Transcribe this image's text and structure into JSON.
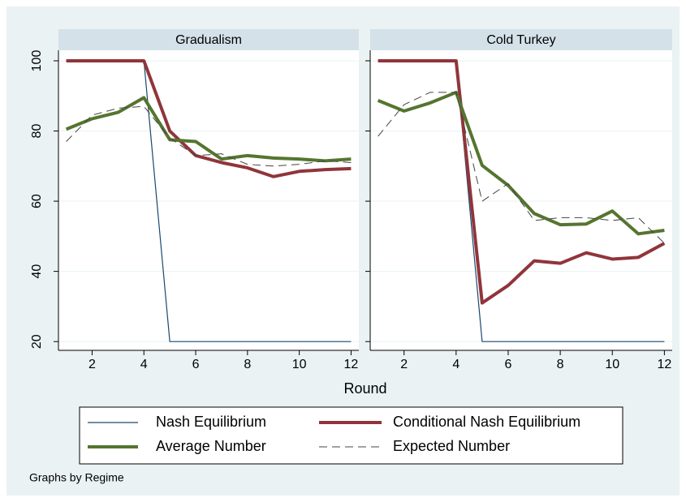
{
  "chart_data": [
    {
      "type": "line",
      "title": "Gradualism",
      "x": [
        1,
        2,
        3,
        4,
        5,
        6,
        7,
        8,
        9,
        10,
        11,
        12
      ],
      "xlim": [
        0.7,
        12.3
      ],
      "xticks": [
        2,
        4,
        6,
        8,
        10,
        12
      ],
      "ylim": [
        17.5,
        103
      ],
      "yticks": [
        20,
        40,
        60,
        80,
        100
      ],
      "grid": true,
      "series": [
        {
          "name": "Nash Equilibrium",
          "color": "#1a476f",
          "width": 1.2,
          "dashed": false,
          "values": [
            100,
            100,
            100,
            100,
            20,
            20,
            20,
            20,
            20,
            20,
            20,
            20
          ]
        },
        {
          "name": "Conditional Nash Equilibrium",
          "color": "#90353b",
          "width": 4,
          "dashed": false,
          "values": [
            100,
            100,
            100,
            100,
            80,
            73,
            71,
            69.5,
            67,
            68.5,
            69,
            69.3
          ]
        },
        {
          "name": "Average Number",
          "color": "#55752f",
          "width": 4,
          "dashed": false,
          "values": [
            80.5,
            83.5,
            85.3,
            89.5,
            77.5,
            77,
            72,
            73,
            72.3,
            72,
            71.5,
            72
          ]
        },
        {
          "name": "Expected Number",
          "color": "#444444",
          "width": 1,
          "dashed": true,
          "values": [
            77,
            84.5,
            86.5,
            87,
            78,
            73,
            73.5,
            70.5,
            70,
            70.5,
            71.5,
            71
          ]
        }
      ]
    },
    {
      "type": "line",
      "title": "Cold Turkey",
      "x": [
        1,
        2,
        3,
        4,
        5,
        6,
        7,
        8,
        9,
        10,
        11,
        12
      ],
      "xlim": [
        0.7,
        12.3
      ],
      "xticks": [
        2,
        4,
        6,
        8,
        10,
        12
      ],
      "ylim": [
        17.5,
        103
      ],
      "yticks": [
        20,
        40,
        60,
        80,
        100
      ],
      "grid": true,
      "series": [
        {
          "color": "#1a476f",
          "width": 1.2,
          "dashed": false,
          "values": [
            100,
            100,
            100,
            100,
            20,
            20,
            20,
            20,
            20,
            20,
            20,
            20
          ]
        },
        {
          "color": "#90353b",
          "width": 4,
          "dashed": false,
          "values": [
            100,
            100,
            100,
            100,
            31,
            36,
            43,
            42.3,
            45.3,
            43.5,
            44,
            48
          ]
        },
        {
          "color": "#55752f",
          "width": 4,
          "dashed": false,
          "values": [
            88.7,
            85.7,
            88,
            91,
            70.2,
            64.5,
            56.5,
            53.3,
            53.5,
            57.2,
            50.7,
            51.7
          ]
        },
        {
          "color": "#444444",
          "width": 1,
          "dashed": true,
          "values": [
            78.5,
            87.5,
            91,
            91,
            60,
            65,
            54.5,
            55.3,
            55.3,
            54.5,
            55.3,
            48
          ]
        }
      ]
    }
  ],
  "xlabel": "Round",
  "note": "Graphs by Regime"
}
